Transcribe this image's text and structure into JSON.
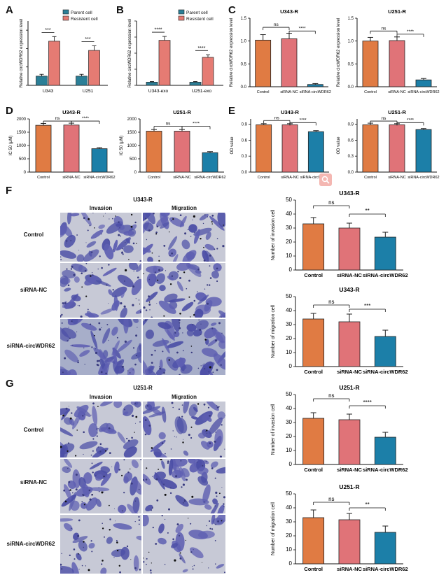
{
  "panel_labels": [
    "A",
    "B",
    "C",
    "D",
    "E",
    "F",
    "G"
  ],
  "colors": {
    "parent": "#2b7f97",
    "resistant": "#e57b73",
    "control": "#e07b43",
    "sinc": "#e07378",
    "sicirc": "#1c7fa8"
  },
  "panel_F": {
    "title": "U343-R",
    "col_invasion": "Invasion",
    "col_migration": "Migration",
    "rows": [
      "Control",
      "siRNA-NC",
      "siRNA-circWDR62"
    ]
  },
  "panel_G": {
    "title": "U251-R",
    "col_invasion": "Invasion",
    "col_migration": "Migration",
    "rows": [
      "Control",
      "siRNA-NC",
      "siRNA-circWDR62"
    ]
  },
  "chart_data": [
    {
      "id": "A",
      "type": "bar",
      "title": "",
      "ylabel": "Relative circWDR62 expression level",
      "categories": [
        "U343",
        "U251"
      ],
      "ylim": [
        0,
        7
      ],
      "ticks": [
        0,
        2,
        4,
        6
      ],
      "show_tick_labels": false,
      "legend": {
        "position": "top-right"
      },
      "series": [
        {
          "name": "Parent cell",
          "color": "#2b7f97",
          "values": [
            1.0,
            1.0
          ],
          "err": [
            0.2,
            0.2
          ]
        },
        {
          "name": "Resistent cell",
          "color": "#e57b73",
          "values": [
            4.8,
            3.8
          ],
          "err": [
            0.5,
            0.5
          ]
        }
      ],
      "sig": [
        {
          "between": [
            [
              0,
              0
            ],
            [
              0,
              1
            ]
          ],
          "label": "***"
        },
        {
          "between": [
            [
              1,
              0
            ],
            [
              1,
              1
            ]
          ],
          "label": "***"
        }
      ]
    },
    {
      "id": "B",
      "type": "bar",
      "title": "",
      "ylabel": "Relative circWDR62 expression level",
      "categories": [
        "U343-exo",
        "U251-exo"
      ],
      "ylim": [
        0,
        20
      ],
      "ticks": [
        0,
        5,
        10,
        15,
        20
      ],
      "show_tick_labels": false,
      "legend": {
        "position": "top-right"
      },
      "series": [
        {
          "name": "Parent cell",
          "color": "#2b7f97",
          "values": [
            1.0,
            1.0
          ],
          "err": [
            0.2,
            0.2
          ]
        },
        {
          "name": "Resistent cell",
          "color": "#e57b73",
          "values": [
            14.0,
            8.7
          ],
          "err": [
            1.2,
            0.8
          ]
        }
      ],
      "sig": [
        {
          "between": [
            [
              0,
              0
            ],
            [
              0,
              1
            ]
          ],
          "label": "****"
        },
        {
          "between": [
            [
              1,
              0
            ],
            [
              1,
              1
            ]
          ],
          "label": "****"
        }
      ]
    },
    {
      "id": "C1",
      "type": "bar",
      "title": "U343-R",
      "ylabel": "Relative circWDR62 expression level",
      "categories": [
        "Control",
        "siRNA-NC",
        "siRNA-circWDR62"
      ],
      "ylim": [
        0,
        1.5
      ],
      "ticks": [
        0.0,
        0.5,
        1.0,
        1.5
      ],
      "colors": [
        "#e07b43",
        "#e07378",
        "#1c7fa8"
      ],
      "values": [
        1.02,
        1.05,
        0.05
      ],
      "err": [
        0.12,
        0.12,
        0.02
      ],
      "sig": [
        {
          "from": 0,
          "to": 1,
          "label": "ns",
          "level": 1.3
        },
        {
          "from": 1,
          "to": 2,
          "label": "****",
          "level": 1.22
        }
      ]
    },
    {
      "id": "C2",
      "type": "bar",
      "title": "U251-R",
      "ylabel": "Relative circWDR62 expression level",
      "categories": [
        "Control",
        "siRNA-NC",
        "siRNA-circWDR62"
      ],
      "ylim": [
        0,
        1.5
      ],
      "ticks": [
        0.0,
        0.5,
        1.0,
        1.5
      ],
      "colors": [
        "#e07b43",
        "#e07378",
        "#1c7fa8"
      ],
      "values": [
        1.0,
        1.01,
        0.15
      ],
      "err": [
        0.08,
        0.08,
        0.03
      ],
      "sig": [
        {
          "from": 0,
          "to": 1,
          "label": "ns",
          "level": 1.22
        },
        {
          "from": 1,
          "to": 2,
          "label": "****",
          "level": 1.15
        }
      ]
    },
    {
      "id": "D1",
      "type": "bar",
      "title": "U343-R",
      "ylabel": "IC 50 (μM)",
      "categories": [
        "Control",
        "siRNA-NC",
        "siRNA-circWDR62"
      ],
      "ylim": [
        0,
        2000
      ],
      "ticks": [
        0,
        500,
        1000,
        1500,
        2000
      ],
      "colors": [
        "#e07b43",
        "#e07378",
        "#1c7fa8"
      ],
      "values": [
        1760,
        1770,
        880
      ],
      "err": [
        70,
        70,
        40
      ],
      "sig": [
        {
          "from": 0,
          "to": 1,
          "label": "ns",
          "level": 1920
        },
        {
          "from": 1,
          "to": 2,
          "label": "****",
          "level": 1920
        }
      ]
    },
    {
      "id": "D2",
      "type": "bar",
      "title": "U251-R",
      "ylabel": "IC 50 (μM)",
      "categories": [
        "Control",
        "siRNA-NC",
        "siRNA-circWDR62"
      ],
      "ylim": [
        0,
        2000
      ],
      "ticks": [
        0,
        500,
        1000,
        1500,
        2000
      ],
      "colors": [
        "#e07b43",
        "#e07378",
        "#1c7fa8"
      ],
      "values": [
        1540,
        1540,
        730
      ],
      "err": [
        60,
        60,
        40
      ],
      "sig": [
        {
          "from": 0,
          "to": 1,
          "label": "ns",
          "level": 1720
        },
        {
          "from": 1,
          "to": 2,
          "label": "****",
          "level": 1720
        }
      ]
    },
    {
      "id": "E1",
      "type": "bar",
      "title": "U343-R",
      "ylabel": "OD value",
      "categories": [
        "Control",
        "siRNA-NC",
        "siRNA-circWDR62"
      ],
      "ylim": [
        0,
        1.0
      ],
      "ticks": [
        0.0,
        0.3,
        0.6,
        0.9
      ],
      "colors": [
        "#e07b43",
        "#e07378",
        "#1c7fa8"
      ],
      "values": [
        0.89,
        0.89,
        0.76
      ],
      "err": [
        0.02,
        0.02,
        0.02
      ],
      "sig": [
        {
          "from": 0,
          "to": 1,
          "label": "ns",
          "level": 0.97
        },
        {
          "from": 1,
          "to": 2,
          "label": "****",
          "level": 0.93
        }
      ]
    },
    {
      "id": "E2",
      "type": "bar",
      "title": "U251-R",
      "ylabel": "OD value",
      "categories": [
        "Control",
        "siRNA-NC",
        "siRNA-circWDR62"
      ],
      "ylim": [
        0,
        1.0
      ],
      "ticks": [
        0.0,
        0.3,
        0.6,
        0.9
      ],
      "colors": [
        "#e07b43",
        "#e07378",
        "#1c7fa8"
      ],
      "values": [
        0.89,
        0.89,
        0.8
      ],
      "err": [
        0.03,
        0.02,
        0.02
      ],
      "sig": [
        {
          "from": 0,
          "to": 1,
          "label": "ns",
          "level": 0.96
        },
        {
          "from": 1,
          "to": 2,
          "label": "****",
          "level": 0.93
        }
      ]
    },
    {
      "id": "F1",
      "type": "bar",
      "title": "U343-R",
      "ylabel": "Number of invasion cell",
      "categories": [
        "Control",
        "siRNA-NC",
        "siRNA-circWDR62"
      ],
      "ylim": [
        0,
        50
      ],
      "ticks": [
        0,
        10,
        20,
        30,
        40,
        50
      ],
      "colors": [
        "#e07b43",
        "#e07378",
        "#1c7fa8"
      ],
      "values": [
        33,
        30,
        23.5
      ],
      "err": [
        4.5,
        3.5,
        3.5
      ],
      "sig": [
        {
          "from": 0,
          "to": 1,
          "label": "ns",
          "level": 46
        },
        {
          "from": 1,
          "to": 2,
          "label": "**",
          "level": 40
        }
      ]
    },
    {
      "id": "F2",
      "type": "bar",
      "title": "U343-R",
      "ylabel": "Number of  migration cell",
      "categories": [
        "Control",
        "siRNA-NC",
        "siRNA-circWDR62"
      ],
      "ylim": [
        0,
        50
      ],
      "ticks": [
        0,
        10,
        20,
        30,
        40,
        50
      ],
      "colors": [
        "#e07b43",
        "#e07378",
        "#1c7fa8"
      ],
      "values": [
        34,
        32,
        21.5
      ],
      "err": [
        4,
        5.5,
        4.5
      ],
      "sig": [
        {
          "from": 0,
          "to": 1,
          "label": "ns",
          "level": 44
        },
        {
          "from": 1,
          "to": 2,
          "label": "***",
          "level": 41
        }
      ]
    },
    {
      "id": "G1",
      "type": "bar",
      "title": "U251-R",
      "ylabel": "Number of invasion cell",
      "categories": [
        "Control",
        "siRNA-NC",
        "siRNA-circWDR62"
      ],
      "ylim": [
        0,
        50
      ],
      "ticks": [
        0,
        10,
        20,
        30,
        40,
        50
      ],
      "colors": [
        "#e07b43",
        "#e07378",
        "#1c7fa8"
      ],
      "values": [
        33,
        32,
        19.5
      ],
      "err": [
        4,
        4,
        3.5
      ],
      "sig": [
        {
          "from": 0,
          "to": 1,
          "label": "ns",
          "level": 47
        },
        {
          "from": 1,
          "to": 2,
          "label": "****",
          "level": 42
        }
      ]
    },
    {
      "id": "G2",
      "type": "bar",
      "title": "U251-R",
      "ylabel": "Number of  migration cell",
      "categories": [
        "Control",
        "siRNA-NC",
        "siRNA-circWDR62"
      ],
      "ylim": [
        0,
        50
      ],
      "ticks": [
        0,
        10,
        20,
        30,
        40,
        50
      ],
      "colors": [
        "#e07b43",
        "#e07378",
        "#1c7fa8"
      ],
      "values": [
        33,
        31.5,
        22.5
      ],
      "err": [
        5.5,
        4.5,
        4.5
      ],
      "sig": [
        {
          "from": 0,
          "to": 1,
          "label": "ns",
          "level": 44
        },
        {
          "from": 1,
          "to": 2,
          "label": "**",
          "level": 40
        }
      ]
    }
  ]
}
